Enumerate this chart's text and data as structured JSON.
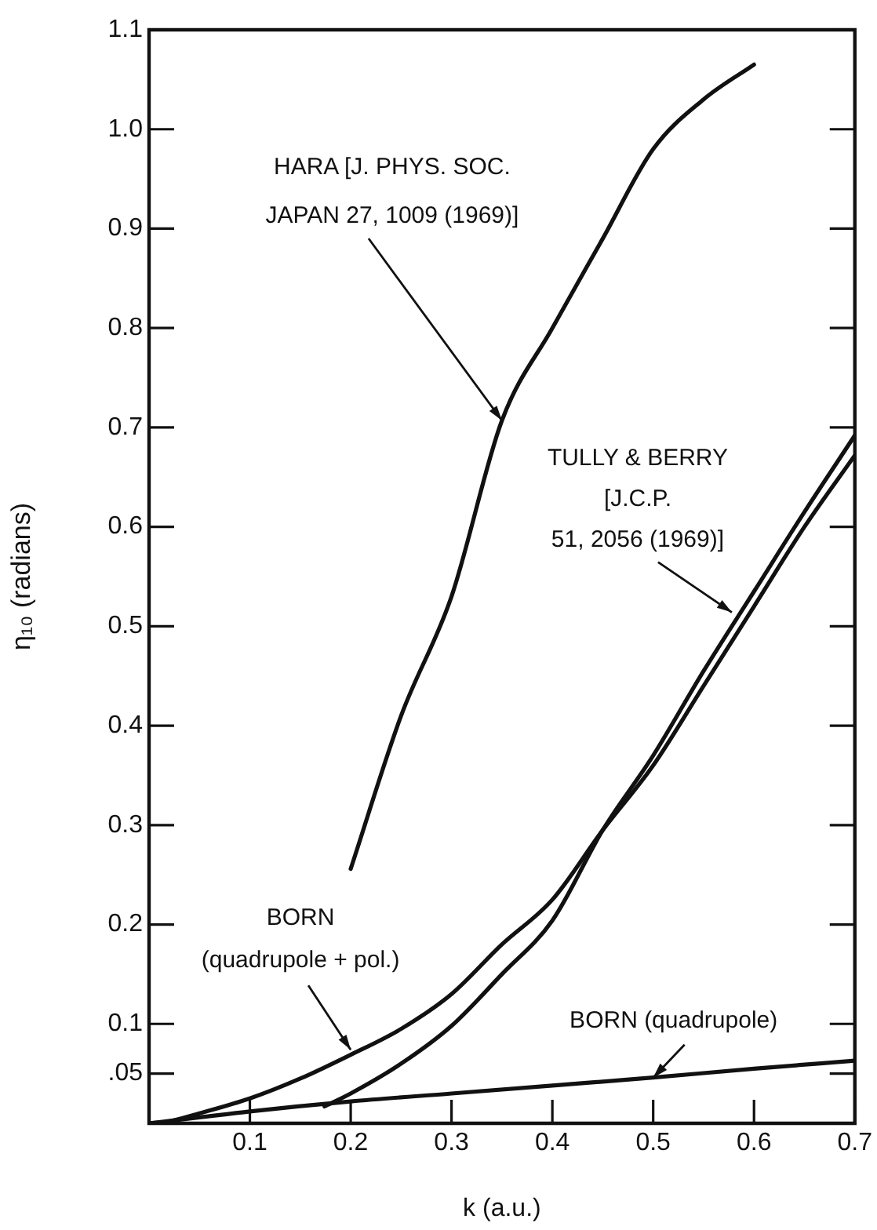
{
  "chart_data": {
    "type": "line",
    "xlabel": "k (a.u.)",
    "ylabel": "η₁₀ (radians)",
    "xlim": [
      0,
      0.7
    ],
    "ylim": [
      0,
      1.1
    ],
    "xticks": [
      0.1,
      0.2,
      0.3,
      0.4,
      0.5,
      0.6,
      0.7
    ],
    "yticks": [
      {
        "value": 0.05,
        "label": ".05"
      },
      0.1,
      0.2,
      0.3,
      0.4,
      0.5,
      0.6,
      0.7,
      0.8,
      0.9,
      {
        "value": 1,
        "label": "1.0"
      },
      1.1
    ],
    "marker": "none",
    "line_style": "solid",
    "series": [
      {
        "color": "#111111",
        "x": [
          0.2,
          0.25,
          0.3,
          0.35,
          0.4,
          0.45,
          0.5,
          0.55,
          0.6
        ],
        "values": [
          0.256,
          0.41,
          0.53,
          0.707,
          0.8,
          0.89,
          0.98,
          1.03,
          1.065
        ]
      },
      {
        "color": "#111111",
        "x": [
          0.174,
          0.2,
          0.25,
          0.3,
          0.35,
          0.4,
          0.45,
          0.5,
          0.55,
          0.6,
          0.65,
          0.7
        ],
        "values": [
          0.017,
          0.03,
          0.06,
          0.098,
          0.15,
          0.204,
          0.295,
          0.37,
          0.455,
          0.535,
          0.615,
          0.692
        ]
      },
      {
        "color": "#111111",
        "x": [
          0,
          0.02,
          0.05,
          0.1,
          0.15,
          0.2,
          0.25,
          0.3,
          0.35,
          0.4,
          0.45,
          0.5,
          0.55,
          0.6,
          0.65,
          0.7
        ],
        "values": [
          0,
          0.002,
          0.01,
          0.025,
          0.045,
          0.069,
          0.095,
          0.13,
          0.18,
          0.225,
          0.295,
          0.36,
          0.44,
          0.52,
          0.6,
          0.672
        ]
      },
      {
        "color": "#111111",
        "x": [
          0,
          0.05,
          0.1,
          0.2,
          0.3,
          0.4,
          0.5,
          0.6,
          0.7
        ],
        "values": [
          0,
          0.006,
          0.012,
          0.022,
          0.03,
          0.038,
          0.046,
          0.055,
          0.063
        ]
      }
    ],
    "annotations": [
      {
        "text": "HARA [J. PHYS. SOC.\nJAPAN 27, 1009 (1969)]",
        "x": 0.35,
        "y": 0.707
      },
      {
        "text": "TULLY & BERRY\n[J.C.P.\n51, 2056 (1969)]",
        "x": 0.578,
        "y": 0.514
      },
      {
        "text": "BORN\n(quadrupole + pol.)",
        "x": 0.2,
        "y": 0.074
      },
      {
        "text": "BORN (quadrupole)",
        "x": 0.5,
        "y": 0.046
      }
    ]
  }
}
